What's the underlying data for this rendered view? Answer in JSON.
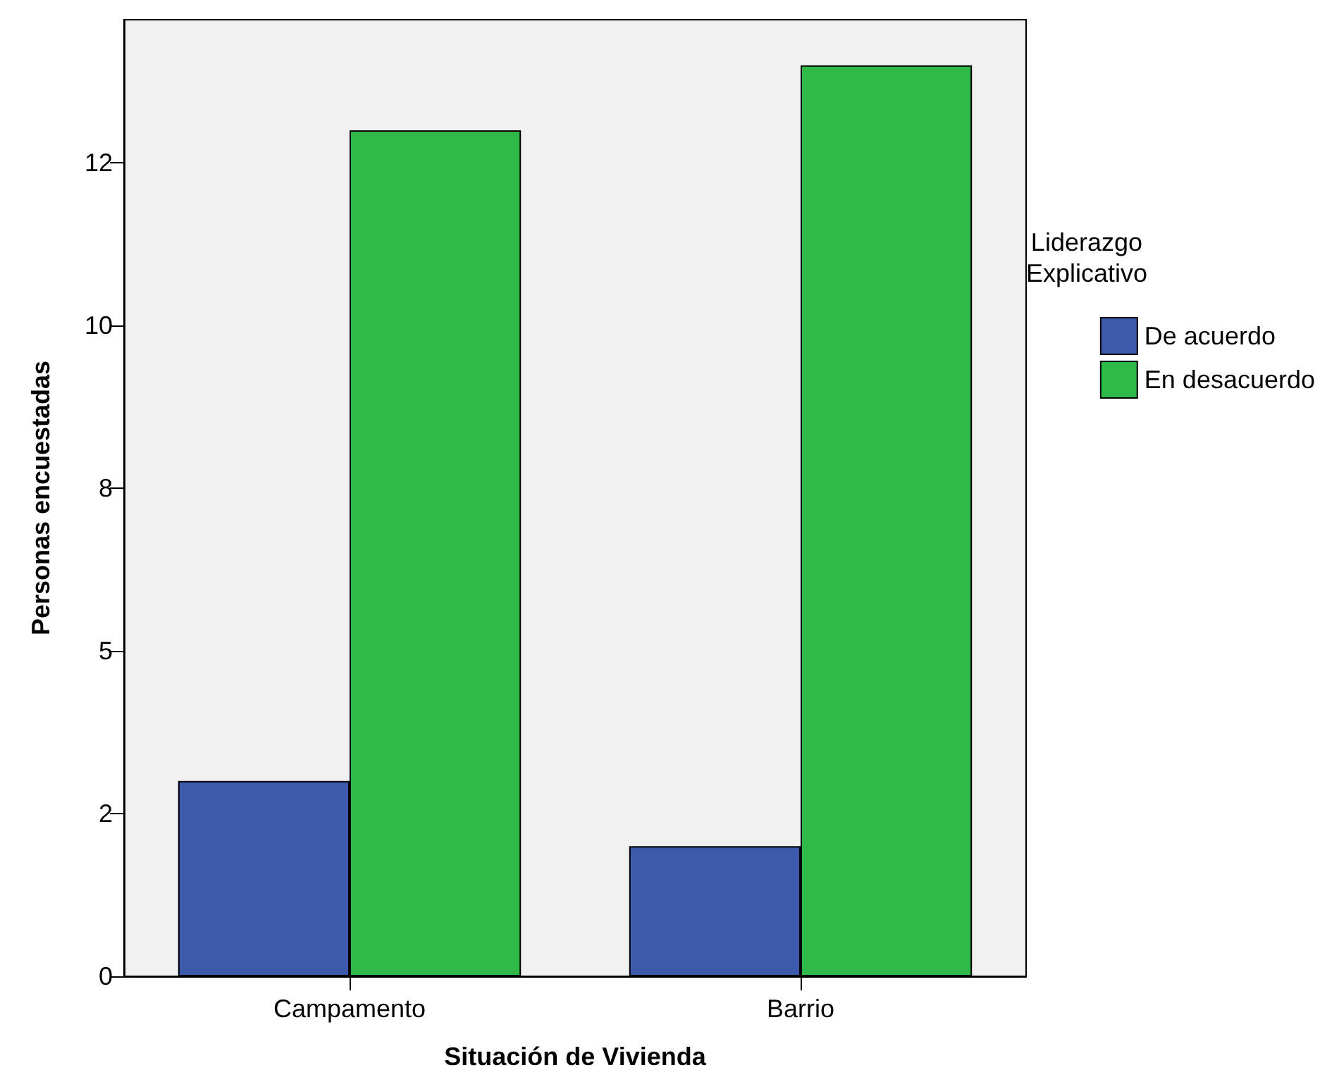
{
  "chart_data": {
    "type": "bar",
    "xlabel": "Situación de Vivienda",
    "ylabel": "Personas encuestadas",
    "legend_title": "Liderazgo\nExplicativo",
    "categories": [
      "Campamento",
      "Barrio"
    ],
    "series": [
      {
        "name": "De acuerdo",
        "color": "#3e58ac",
        "values": [
          3,
          2
        ]
      },
      {
        "name": "En desacuerdo",
        "color": "#2eb848",
        "values": [
          13,
          14
        ]
      }
    ],
    "ylim": [
      0,
      14.7
    ],
    "yticks": [
      0,
      {
        "value": 2.5,
        "label": "2"
      },
      5,
      {
        "value": 7.5,
        "label": "8"
      },
      10,
      {
        "value": 12.5,
        "label": "12"
      }
    ],
    "grid": false,
    "legend": "right"
  }
}
